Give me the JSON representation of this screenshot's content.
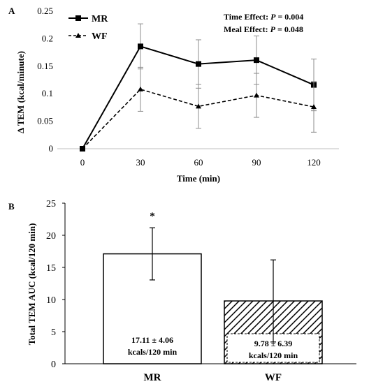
{
  "chart_data": [
    {
      "panel": "A",
      "type": "line",
      "x": [
        0,
        30,
        60,
        90,
        120
      ],
      "xlabel": "Time (min)",
      "ylabel": "Δ TEM (kcal/minute)",
      "ylim": [
        0,
        0.25
      ],
      "yticks": [
        "0",
        "0.05",
        "0.1",
        "0.15",
        "0.2",
        "0.25"
      ],
      "xticks": [
        "0",
        "30",
        "60",
        "90",
        "120"
      ],
      "grid": false,
      "legend": "top-left",
      "series": [
        {
          "name": "MR",
          "style": "solid",
          "marker": "square",
          "values": [
            0,
            0.186,
            0.154,
            0.161,
            0.116
          ],
          "errors": [
            0,
            0.041,
            0.044,
            0.044,
            0.047
          ]
        },
        {
          "name": "WF",
          "style": "dashed",
          "marker": "triangle",
          "values": [
            0,
            0.108,
            0.077,
            0.097,
            0.076
          ],
          "errors": [
            0,
            0.04,
            0.04,
            0.04,
            0.046
          ]
        }
      ],
      "annotations": [
        {
          "label": "Time Effect: ",
          "p": "P",
          "value": " = 0.004"
        },
        {
          "label": "Meal Effect: ",
          "p": "P",
          "value": " = 0.048"
        }
      ]
    },
    {
      "panel": "B",
      "type": "bar",
      "categories": [
        "MR",
        "WF"
      ],
      "values": [
        17.11,
        9.78
      ],
      "errors": [
        4.06,
        6.39
      ],
      "ylabel": "Total TEM AUC (kcal/120 min)",
      "ylim": [
        0,
        25
      ],
      "yticks": [
        "0",
        "5",
        "10",
        "15",
        "20",
        "25"
      ],
      "grid": false,
      "bar_labels": [
        {
          "line1": "17.11 ± 4.06",
          "line2": "kcals/120 min"
        },
        {
          "line1": "9.78 ± 6.39",
          "line2": "kcals/120 min"
        }
      ],
      "significance": "*"
    }
  ]
}
